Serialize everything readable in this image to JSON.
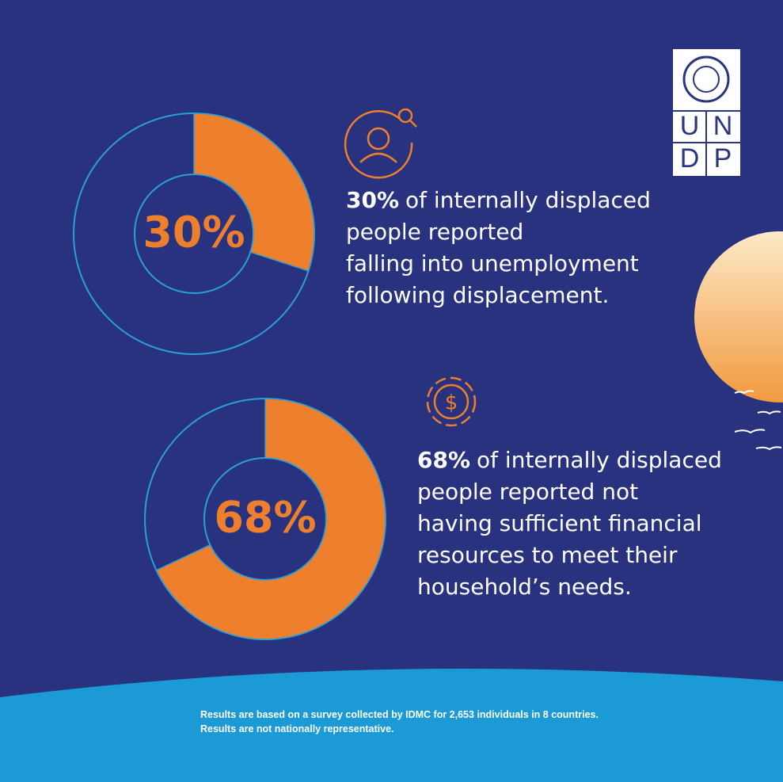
{
  "chart_data": [
    {
      "type": "donut",
      "values": [
        30
      ],
      "value_labels": [
        "30%"
      ],
      "color": "#ee7f2d",
      "statement": [
        "of internally displaced",
        "people reported",
        "falling into unemployment",
        "following displacement."
      ]
    },
    {
      "type": "donut",
      "values": [
        68
      ],
      "value_labels": [
        "68%"
      ],
      "color": "#ee7f2d",
      "statement": [
        "of internally displaced",
        "people reported not",
        "having sufficient financial",
        "resources to meet their",
        "household’s needs."
      ]
    }
  ],
  "logo": {
    "letters": [
      "U",
      "N",
      "D",
      "P"
    ]
  },
  "footnote": [
    "Results are based on a survey collected by IDMC for 2,653 individuals in 8 countries.",
    "Results are not nationally representative."
  ]
}
